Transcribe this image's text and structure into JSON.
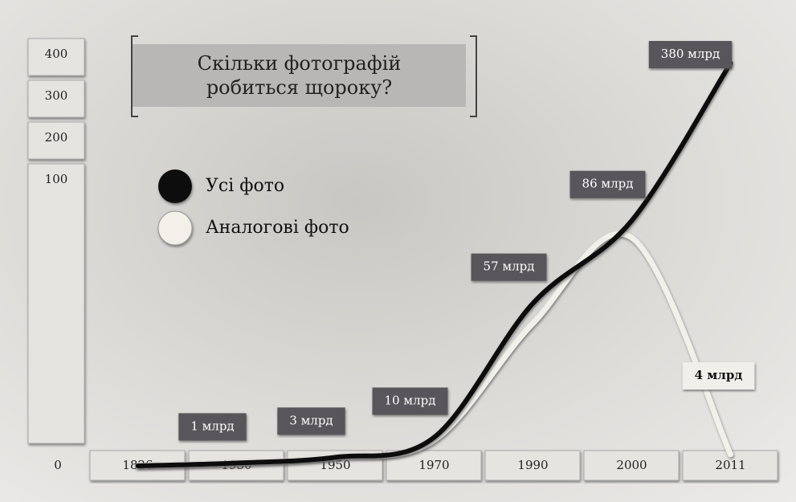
{
  "chart_data": {
    "type": "line",
    "title": "Скільки фотографій робиться щороку?",
    "categories": [
      "1826",
      "1930",
      "1950",
      "1970",
      "1990",
      "2000",
      "2011"
    ],
    "series": [
      {
        "name": "Усі фото",
        "color": "#111111",
        "values": [
          0,
          1,
          3,
          10,
          57,
          86,
          380
        ],
        "value_labels": [
          null,
          "1 млрд",
          "3 млрд",
          "10 млрд",
          "57 млрд",
          "86 млрд",
          "380 млрд"
        ]
      },
      {
        "name": "Аналогові фото",
        "color": "#f3f0ea",
        "values": [
          0,
          1,
          3,
          9,
          50,
          80,
          4
        ],
        "value_labels": [
          null,
          null,
          null,
          null,
          null,
          null,
          "4 млрд"
        ]
      }
    ],
    "ylim": [
      0,
      400
    ],
    "yticks": [
      0,
      100,
      200,
      300,
      400
    ]
  }
}
